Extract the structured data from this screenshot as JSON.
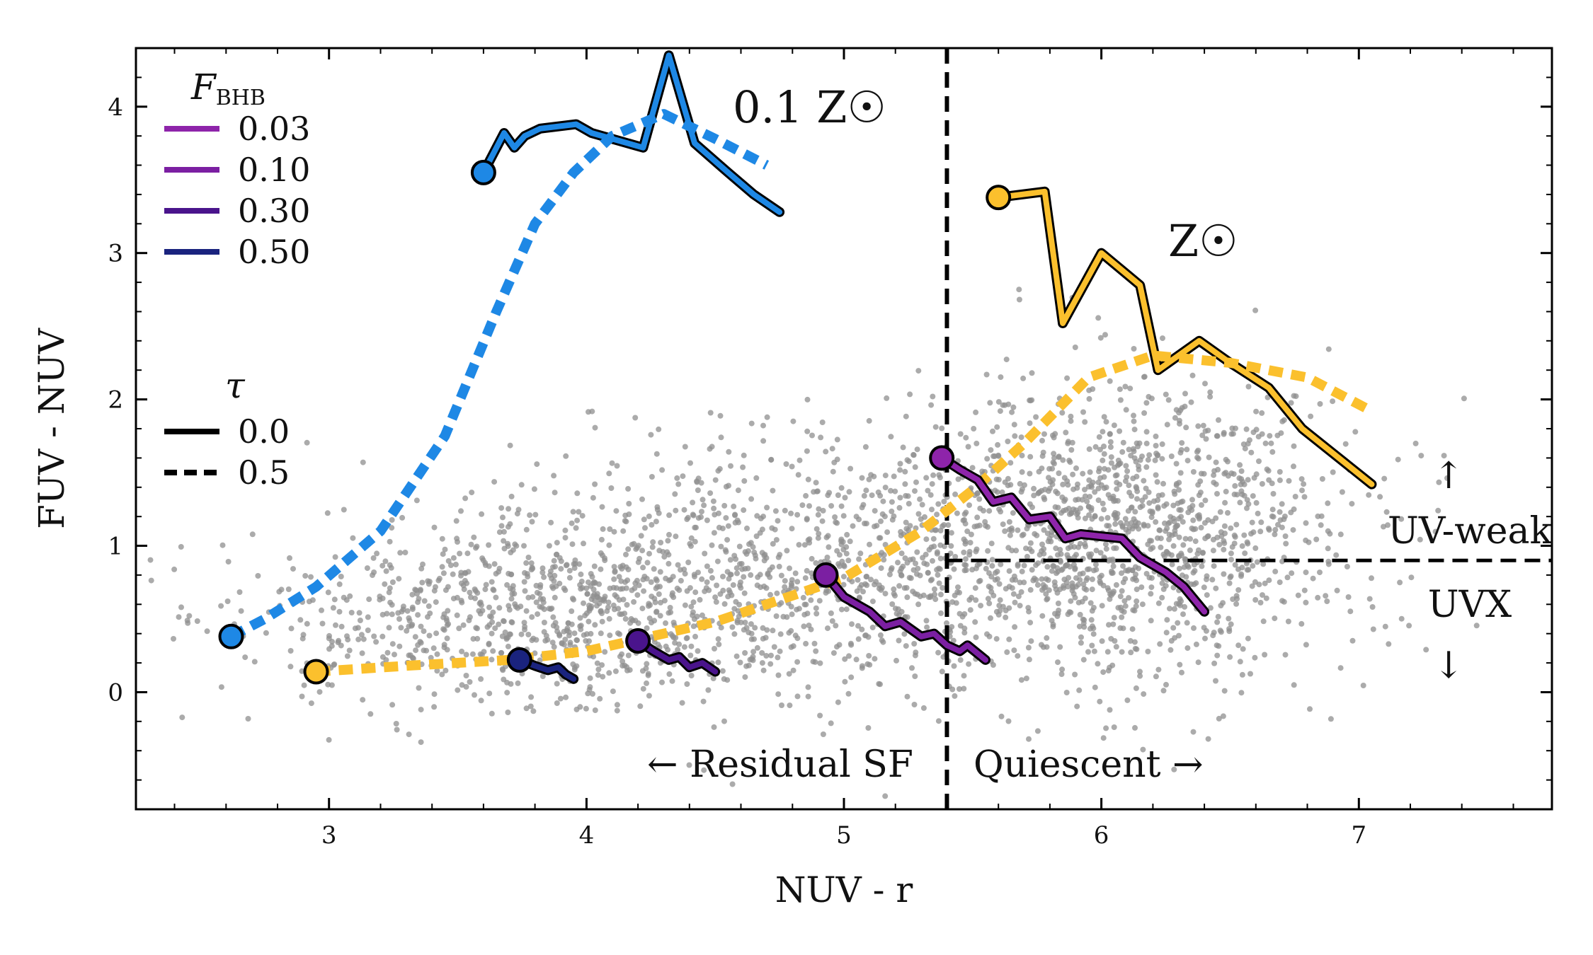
{
  "colors": {
    "blue": "#1e88e5",
    "yellow": "#fbc02d",
    "scatter": "#8f8f8f",
    "fbhb_003": "#8e24aa",
    "fbhb_010": "#7b1fa2",
    "fbhb_030": "#4a148c",
    "fbhb_050": "#1a237e"
  },
  "chart_data": {
    "type": "line",
    "xlabel": "NUV - r",
    "ylabel": "FUV - NUV",
    "xlim": [
      2.25,
      7.75
    ],
    "ylim": [
      -0.8,
      4.4
    ],
    "xticks": [
      "3",
      "4",
      "5",
      "6",
      "7"
    ],
    "yticks": [
      "0",
      "1",
      "2",
      "3",
      "4"
    ],
    "cuts": {
      "nuv_r": 5.4,
      "fuv_nuv": 0.9
    },
    "legend_fbhb": {
      "title": "F",
      "title_sub": "BHB",
      "items": [
        {
          "label": "0.03",
          "color": "#8e24aa"
        },
        {
          "label": "0.10",
          "color": "#7b1fa2"
        },
        {
          "label": "0.30",
          "color": "#4a148c"
        },
        {
          "label": "0.50",
          "color": "#1a237e"
        }
      ]
    },
    "legend_tau": {
      "title": "τ",
      "items": [
        {
          "label": "0.0",
          "style": "solid"
        },
        {
          "label": "0.5",
          "style": "dashed"
        }
      ]
    },
    "annotations": {
      "low_z": "0.1 Z☉",
      "solar": "Z☉",
      "uv_weak": "UV-weak",
      "uvx": "UVX",
      "arrow_up": "↑",
      "arrow_down": "↓",
      "residual_sf": "← Residual SF",
      "quiescent": "Quiescent →"
    },
    "series": [
      {
        "name": "0.1 Z☉, τ=0.0",
        "style": "solid",
        "color": "#1e88e5",
        "x": [
          3.6,
          3.68,
          3.72,
          3.76,
          3.82,
          3.96,
          4.02,
          4.22,
          4.32,
          4.42,
          4.55,
          4.65,
          4.75
        ],
        "y": [
          3.55,
          3.82,
          3.72,
          3.8,
          3.85,
          3.88,
          3.82,
          3.72,
          4.35,
          3.75,
          3.55,
          3.4,
          3.28
        ]
      },
      {
        "name": "0.1 Z☉, τ=0.5",
        "style": "dashed",
        "color": "#1e88e5",
        "x": [
          2.62,
          2.75,
          2.95,
          3.2,
          3.45,
          3.65,
          3.8,
          3.95,
          4.1,
          4.3,
          4.5,
          4.7
        ],
        "y": [
          0.38,
          0.5,
          0.72,
          1.1,
          1.75,
          2.6,
          3.2,
          3.55,
          3.8,
          3.95,
          3.78,
          3.6
        ]
      },
      {
        "name": "Z☉, τ=0.0",
        "style": "solid",
        "color": "#fbc02d",
        "x": [
          5.6,
          5.78,
          5.85,
          6.0,
          6.15,
          6.22,
          6.38,
          6.5,
          6.65,
          6.78,
          7.05
        ],
        "y": [
          3.38,
          3.42,
          2.52,
          3.0,
          2.78,
          2.2,
          2.4,
          2.25,
          2.08,
          1.8,
          1.42
        ]
      },
      {
        "name": "Z☉, τ=0.5",
        "style": "dashed",
        "color": "#fbc02d",
        "x": [
          2.95,
          3.3,
          3.7,
          4.0,
          4.5,
          5.0,
          5.3,
          5.5,
          5.7,
          5.95,
          6.2,
          6.5,
          6.8,
          7.05
        ],
        "y": [
          0.14,
          0.18,
          0.22,
          0.28,
          0.48,
          0.78,
          1.1,
          1.38,
          1.7,
          2.15,
          2.3,
          2.25,
          2.15,
          1.92
        ]
      },
      {
        "name": "F_BHB=0.03",
        "style": "solid",
        "color": "#8e24aa",
        "x": [
          5.38,
          5.45,
          5.52,
          5.58,
          5.65,
          5.72,
          5.8,
          5.86,
          5.92,
          6.08,
          6.15,
          6.25,
          6.32,
          6.4
        ],
        "y": [
          1.6,
          1.52,
          1.45,
          1.3,
          1.33,
          1.18,
          1.2,
          1.05,
          1.08,
          1.05,
          0.92,
          0.82,
          0.72,
          0.55
        ]
      },
      {
        "name": "F_BHB=0.10",
        "style": "solid",
        "color": "#7b1fa2",
        "x": [
          4.93,
          5.0,
          5.1,
          5.16,
          5.22,
          5.3,
          5.35,
          5.4,
          5.45,
          5.48,
          5.55
        ],
        "y": [
          0.8,
          0.65,
          0.55,
          0.45,
          0.48,
          0.38,
          0.4,
          0.32,
          0.28,
          0.32,
          0.22
        ]
      },
      {
        "name": "F_BHB=0.30",
        "style": "solid",
        "color": "#4a148c",
        "x": [
          4.2,
          4.26,
          4.32,
          4.36,
          4.4,
          4.45,
          4.5
        ],
        "y": [
          0.35,
          0.28,
          0.22,
          0.24,
          0.17,
          0.2,
          0.14
        ]
      },
      {
        "name": "F_BHB=0.50",
        "style": "solid",
        "color": "#1a237e",
        "x": [
          3.74,
          3.8,
          3.85,
          3.89,
          3.92,
          3.95
        ],
        "y": [
          0.22,
          0.18,
          0.15,
          0.17,
          0.12,
          0.09
        ]
      }
    ],
    "start_markers": [
      {
        "x": 3.6,
        "y": 3.55,
        "color": "#1e88e5"
      },
      {
        "x": 2.62,
        "y": 0.38,
        "color": "#1e88e5"
      },
      {
        "x": 5.6,
        "y": 3.38,
        "color": "#fbc02d"
      },
      {
        "x": 2.95,
        "y": 0.14,
        "color": "#fbc02d"
      },
      {
        "x": 5.38,
        "y": 1.6,
        "color": "#8e24aa"
      },
      {
        "x": 4.93,
        "y": 0.8,
        "color": "#7b1fa2"
      },
      {
        "x": 4.2,
        "y": 0.35,
        "color": "#4a148c"
      },
      {
        "x": 3.74,
        "y": 0.22,
        "color": "#1a237e"
      }
    ],
    "scatter": {
      "name": "galaxy sample",
      "color": "#8f8f8f",
      "n_points": 3000,
      "seed": 7,
      "components": [
        {
          "weight": 0.4,
          "mean_x": 6.1,
          "mean_y": 1.15,
          "sd_x": 0.45,
          "sd_y": 0.5
        },
        {
          "weight": 0.35,
          "mean_x": 4.9,
          "mean_y": 0.85,
          "sd_x": 0.7,
          "sd_y": 0.45
        },
        {
          "weight": 0.25,
          "mean_x": 3.8,
          "mean_y": 0.5,
          "sd_x": 0.55,
          "sd_y": 0.3
        }
      ]
    }
  }
}
